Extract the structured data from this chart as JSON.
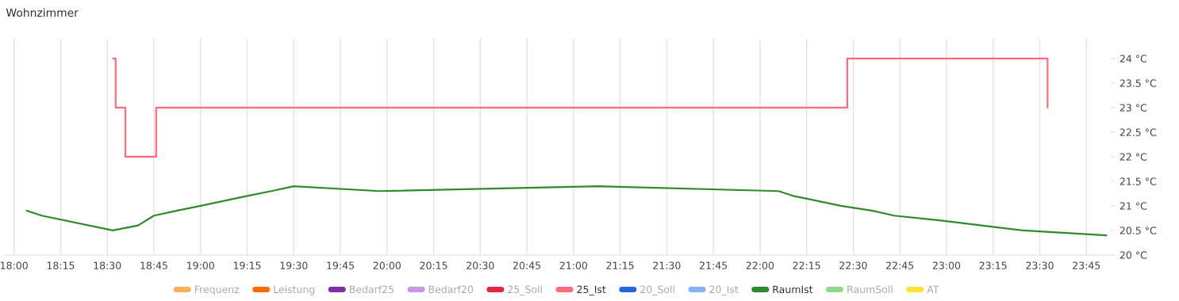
{
  "chart_data": {
    "type": "line",
    "title": "Wohnzimmer",
    "xlim": [
      17.95,
      23.88
    ],
    "xticks": [
      {
        "value": 18.0,
        "label": "18:00"
      },
      {
        "value": 18.25,
        "label": "18:15"
      },
      {
        "value": 18.5,
        "label": "18:30"
      },
      {
        "value": 18.75,
        "label": "18:45"
      },
      {
        "value": 19.0,
        "label": "19:00"
      },
      {
        "value": 19.25,
        "label": "19:15"
      },
      {
        "value": 19.5,
        "label": "19:30"
      },
      {
        "value": 19.75,
        "label": "19:45"
      },
      {
        "value": 20.0,
        "label": "20:00"
      },
      {
        "value": 20.25,
        "label": "20:15"
      },
      {
        "value": 20.5,
        "label": "20:30"
      },
      {
        "value": 20.75,
        "label": "20:45"
      },
      {
        "value": 21.0,
        "label": "21:00"
      },
      {
        "value": 21.25,
        "label": "21:15"
      },
      {
        "value": 21.5,
        "label": "21:30"
      },
      {
        "value": 21.75,
        "label": "21:45"
      },
      {
        "value": 22.0,
        "label": "22:00"
      },
      {
        "value": 22.25,
        "label": "22:15"
      },
      {
        "value": 22.5,
        "label": "22:30"
      },
      {
        "value": 22.75,
        "label": "22:45"
      },
      {
        "value": 23.0,
        "label": "23:00"
      },
      {
        "value": 23.25,
        "label": "23:15"
      },
      {
        "value": 23.5,
        "label": "23:30"
      },
      {
        "value": 23.75,
        "label": "23:45"
      }
    ],
    "ylim": [
      20,
      24.4
    ],
    "yticks": [
      {
        "value": 20,
        "label": "20 °C"
      },
      {
        "value": 20.5,
        "label": "20.5 °C"
      },
      {
        "value": 21,
        "label": "21 °C"
      },
      {
        "value": 21.5,
        "label": "21.5 °C"
      },
      {
        "value": 22,
        "label": "22 °C"
      },
      {
        "value": 22.5,
        "label": "22.5 °C"
      },
      {
        "value": 23,
        "label": "23 °C"
      },
      {
        "value": 23.5,
        "label": "23.5 °C"
      },
      {
        "value": 24,
        "label": "24 °C"
      }
    ],
    "grid": "x",
    "legend": "bottom",
    "series": [
      {
        "name": "Frequenz",
        "color": "#ffad5c"
      },
      {
        "name": "Leistung",
        "color": "#ff6a00"
      },
      {
        "name": "Bedarf25",
        "color": "#7b2fa8"
      },
      {
        "name": "Bedarf20",
        "color": "#c996e6"
      },
      {
        "name": "25_Soll",
        "color": "#e0283f"
      },
      {
        "name": "25_Ist",
        "color": "#ff6b7a",
        "type": "step",
        "x": [
          18.53,
          18.545,
          18.597,
          18.762,
          22.468,
          23.542
        ],
        "values": [
          24,
          23,
          22,
          23,
          24,
          23
        ]
      },
      {
        "name": "20_Soll",
        "color": "#2467d6"
      },
      {
        "name": "20_Ist",
        "color": "#85b3f5"
      },
      {
        "name": "RaumIst",
        "color": "#2e8b2a",
        "x": [
          18.068,
          18.149,
          18.53,
          18.665,
          18.75,
          18.87,
          19.0,
          19.25,
          19.38,
          19.5,
          19.96,
          21.13,
          22.1,
          22.18,
          22.435,
          22.605,
          22.72,
          22.97,
          23.41,
          23.857
        ],
        "values": [
          20.9,
          20.8,
          20.5,
          20.6,
          20.8,
          20.9,
          21.0,
          21.2,
          21.3,
          21.4,
          21.3,
          21.4,
          21.3,
          21.2,
          21.0,
          20.9,
          20.8,
          20.7,
          20.5,
          20.4
        ]
      },
      {
        "name": "RaumSoll",
        "color": "#8fd98a"
      },
      {
        "name": "AT",
        "color": "#ffe433"
      }
    ]
  }
}
